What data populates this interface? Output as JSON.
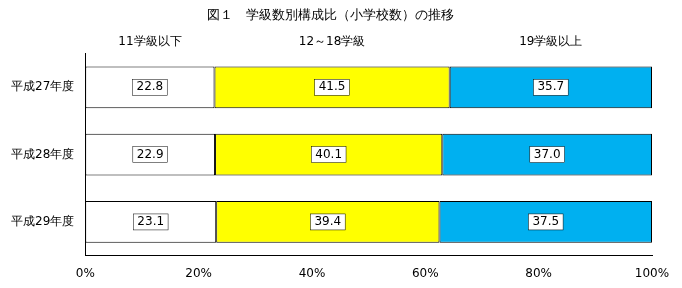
{
  "chart_data": {
    "type": "bar",
    "title": "図１　学級数別構成比（小学校数）の推移",
    "orientation": "horizontal",
    "stacked": true,
    "data_labels": true,
    "grid": false,
    "categories": [
      "平成27年度",
      "平成28年度",
      "平成29年度"
    ],
    "series": [
      {
        "name": "11学級以下",
        "color": "#ffffff",
        "values": [
          22.8,
          22.9,
          23.1
        ],
        "value_labels": [
          "22.8",
          "22.9",
          "23.1"
        ]
      },
      {
        "name": "12～18学級",
        "color": "#ffff00",
        "values": [
          41.5,
          40.1,
          39.4
        ],
        "value_labels": [
          "41.5",
          "40.1",
          "39.4"
        ]
      },
      {
        "name": "19学級以上",
        "color": "#00b0f0",
        "values": [
          35.7,
          37.0,
          37.5
        ],
        "value_labels": [
          "35.7",
          "37.0",
          "37.5"
        ]
      }
    ],
    "xlim": [
      0,
      100
    ],
    "xticks": [
      {
        "value": 0,
        "label": "0%"
      },
      {
        "value": 20,
        "label": "20%"
      },
      {
        "value": 40,
        "label": "40%"
      },
      {
        "value": 60,
        "label": "60%"
      },
      {
        "value": 80,
        "label": "80%"
      },
      {
        "value": 100,
        "label": "100%"
      }
    ]
  }
}
